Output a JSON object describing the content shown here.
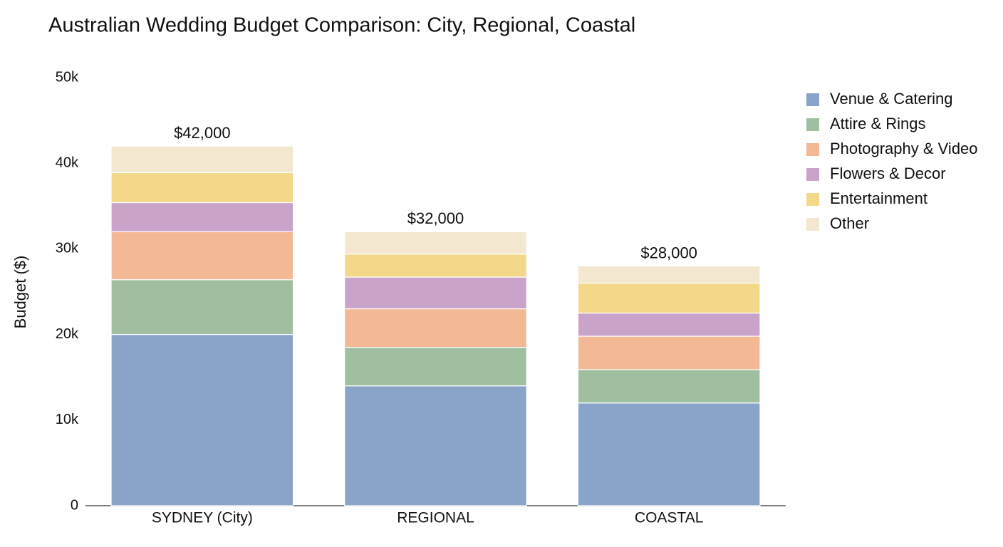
{
  "chart_data": {
    "type": "stacked-bar",
    "title": "Australian Wedding Budget Comparison: City, Regional, Coastal",
    "y_label": "Budget ($)",
    "categories": [
      "SYDNEY (City)",
      "REGIONAL",
      "COASTAL"
    ],
    "series": [
      {
        "name": "Venue & Catering",
        "color": "#8aa3c8",
        "values": [
          20000,
          14000,
          12000
        ]
      },
      {
        "name": "Attire & Rings",
        "color": "#9fbfa0",
        "values": [
          6400,
          4500,
          3900
        ]
      },
      {
        "name": "Photography & Video",
        "color": "#f3b994",
        "values": [
          5600,
          4500,
          3900
        ]
      },
      {
        "name": "Flowers & Decor",
        "color": "#c9a3c9",
        "values": [
          3400,
          3700,
          2700
        ]
      },
      {
        "name": "Entertainment",
        "color": "#f3d88a",
        "values": [
          3500,
          2700,
          3500
        ]
      },
      {
        "name": "Other",
        "color": "#f3e8cf",
        "values": [
          3100,
          2600,
          2000
        ]
      }
    ],
    "totals": [
      42000,
      32000,
      28000
    ],
    "total_labels": [
      "$42,000",
      "$32,000",
      "$28,000"
    ],
    "ylim": [
      0,
      50000
    ],
    "yticks": [
      0,
      {
        "value": 10000,
        "label": "10k"
      },
      {
        "value": 20000,
        "label": "20k"
      },
      {
        "value": 30000,
        "label": "30k"
      },
      {
        "value": 40000,
        "label": "40k"
      },
      {
        "value": 50000,
        "label": "50k"
      }
    ],
    "grid": false,
    "legend": "right"
  }
}
